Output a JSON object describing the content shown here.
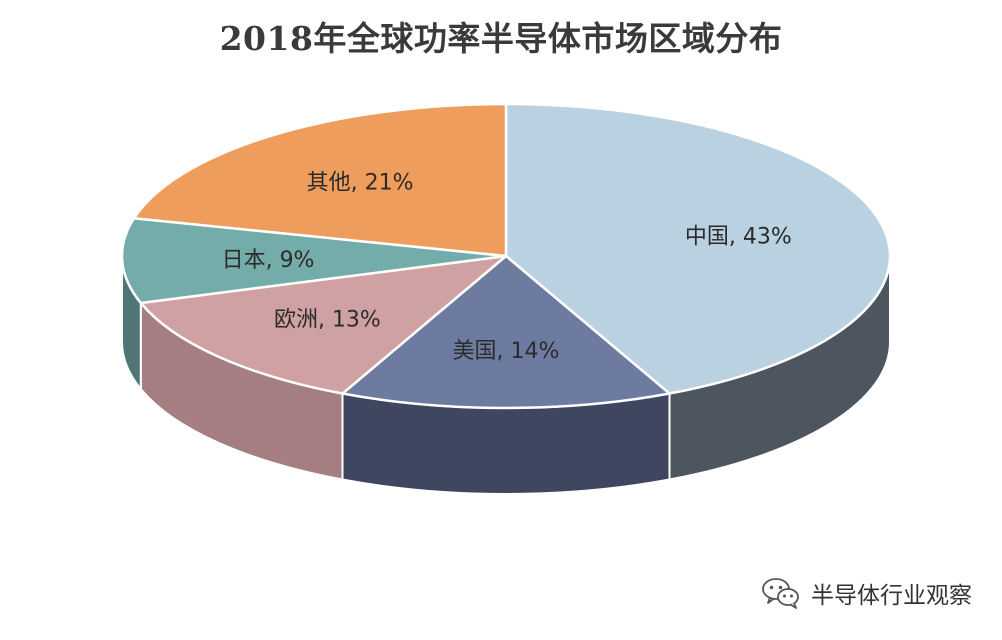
{
  "chart_data": {
    "type": "pie",
    "title": "2018年全球功率半导体市场区域分布",
    "slices": [
      {
        "label": "中国",
        "value": 43,
        "display": "中国, 43%",
        "color": "#B9D1E1",
        "side_color": "#4D565F"
      },
      {
        "label": "美国",
        "value": 14,
        "display": "美国, 14%",
        "color": "#6E7BA1",
        "side_color": "#3F4660"
      },
      {
        "label": "欧洲",
        "value": 13,
        "display": "欧洲, 13%",
        "color": "#D0A1A2",
        "side_color": "#A47E80"
      },
      {
        "label": "日本",
        "value": 9,
        "display": "日本, 9%",
        "color": "#74ACA9",
        "side_color": "#4F7674"
      },
      {
        "label": "其他",
        "value": 21,
        "display": "其他, 21%",
        "color": "#EE9D5C",
        "side_color": "#B27442"
      }
    ],
    "legend": "none",
    "three_d": true
  },
  "watermark": {
    "text": "半导体行业观察",
    "icon": "wechat-icon"
  }
}
